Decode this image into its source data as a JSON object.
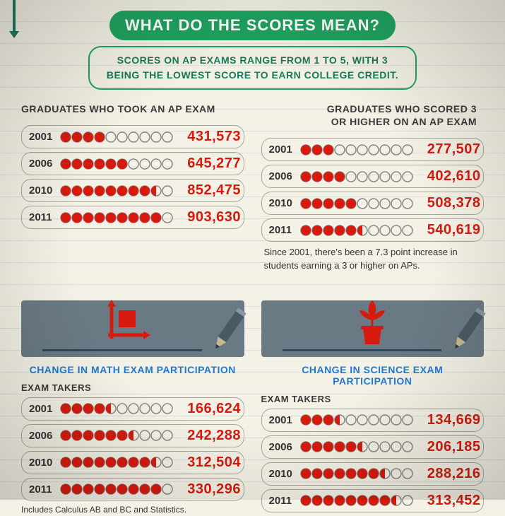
{
  "colors": {
    "background": "#f4f2e6",
    "green_fill": "#1fa35f",
    "green_border": "#1a7a5a",
    "red": "#d61b0e",
    "grey_panel": "#6a7a84",
    "blue_label": "#1e79d6",
    "row_border": "#a8a898",
    "text": "#333333"
  },
  "header": {
    "title": "WHAT DO THE SCORES MEAN?",
    "subtitle_line1": "SCORES ON AP EXAMS RANGE FROM 1 TO 5, WITH 3",
    "subtitle_line2": "BEING THE LOWEST SCORE TO EARN COLLEGE CREDIT."
  },
  "top_left": {
    "title": "GRADUATES WHO TOOK AN AP EXAM",
    "dot_total": 10,
    "rows": [
      {
        "year": "2001",
        "fill": 4.0,
        "value": "431,573"
      },
      {
        "year": "2006",
        "fill": 6.0,
        "value": "645,277"
      },
      {
        "year": "2010",
        "fill": 8.5,
        "value": "852,475"
      },
      {
        "year": "2011",
        "fill": 9.0,
        "value": "903,630"
      }
    ]
  },
  "top_right": {
    "title_line1": "GRADUATES WHO SCORED 3",
    "title_line2": "OR HIGHER ON AN AP EXAM",
    "dot_total": 10,
    "rows": [
      {
        "year": "2001",
        "fill": 3.0,
        "value": "277,507"
      },
      {
        "year": "2006",
        "fill": 4.0,
        "value": "402,610"
      },
      {
        "year": "2010",
        "fill": 5.0,
        "value": "508,378"
      },
      {
        "year": "2011",
        "fill": 5.5,
        "value": "540,619"
      }
    ],
    "note": "Since 2001, there's been a 7.3 point increase in students earning a 3 or higher on APs."
  },
  "bottom_left": {
    "section_label": "CHANGE IN MATH EXAM PARTICIPATION",
    "sub_label": "EXAM TAKERS",
    "dot_total": 10,
    "rows": [
      {
        "year": "2001",
        "fill": 4.5,
        "value": "166,624"
      },
      {
        "year": "2006",
        "fill": 6.5,
        "value": "242,288"
      },
      {
        "year": "2010",
        "fill": 8.5,
        "value": "312,504"
      },
      {
        "year": "2011",
        "fill": 9.0,
        "value": "330,296"
      }
    ],
    "footnote": "Includes Calculus AB and BC and Statistics."
  },
  "bottom_right": {
    "section_label": "CHANGE IN SCIENCE EXAM PARTICIPATION",
    "sub_label": "EXAM TAKERS",
    "dot_total": 10,
    "rows": [
      {
        "year": "2001",
        "fill": 3.5,
        "value": "134,669"
      },
      {
        "year": "2006",
        "fill": 5.5,
        "value": "206,185"
      },
      {
        "year": "2010",
        "fill": 7.5,
        "value": "288,216"
      },
      {
        "year": "2011",
        "fill": 8.5,
        "value": "313,452"
      }
    ]
  },
  "dot_style": {
    "radius": 7,
    "gap": 2,
    "empty_stroke": "#888",
    "empty_stroke_width": 1.5,
    "fill_color": "#d61b0e"
  }
}
